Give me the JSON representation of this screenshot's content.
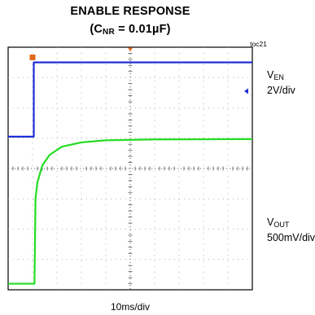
{
  "chart_data": {
    "type": "line",
    "title": "ENABLE RESPONSE",
    "subtitle": {
      "prefix": "(C",
      "sub": "NR",
      "suffix": " = 0.01µF)"
    },
    "figure_id": "toc21",
    "x_scale": "10ms/div",
    "x_divisions": 10,
    "y_divisions": 8,
    "grid": true,
    "x_range_divs": [
      0,
      10
    ],
    "series": [
      {
        "name_main": "V",
        "name_sub": "EN",
        "scale": "2V/div",
        "color": "#1f2fd4",
        "points_divs": [
          [
            0,
            5.05
          ],
          [
            1.05,
            5.05
          ],
          [
            1.05,
            7.5
          ],
          [
            10,
            7.5
          ]
        ]
      },
      {
        "name_main": "V",
        "name_sub": "OUT",
        "scale": "500mV/div",
        "color": "#22dd22",
        "points_divs": [
          [
            0,
            0.2
          ],
          [
            1.08,
            0.2
          ],
          [
            1.12,
            3.0
          ],
          [
            1.2,
            3.55
          ],
          [
            1.4,
            4.1
          ],
          [
            1.7,
            4.45
          ],
          [
            2.2,
            4.72
          ],
          [
            3.0,
            4.86
          ],
          [
            4.0,
            4.93
          ],
          [
            6.0,
            4.96
          ],
          [
            10,
            4.97
          ]
        ]
      }
    ],
    "trigger_marker_color": "#e06a1a",
    "channel_marker_color": "#1f2fd4"
  }
}
